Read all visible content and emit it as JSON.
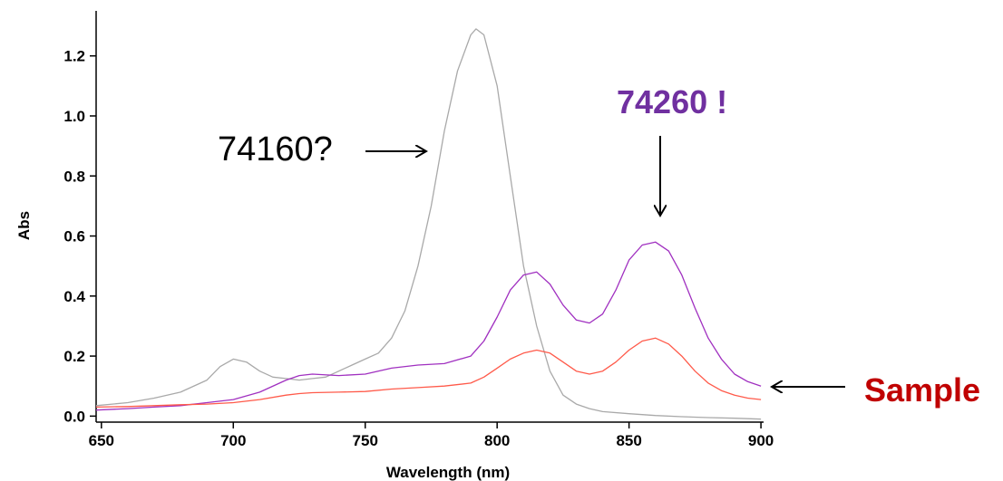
{
  "chart_data": {
    "type": "line",
    "xlabel": "Wavelength (nm)",
    "ylabel": "Abs",
    "xlim": [
      648,
      901
    ],
    "ylim": [
      -0.02,
      1.35
    ],
    "x_ticks": [
      650,
      700,
      750,
      800,
      850,
      900
    ],
    "y_ticks": [
      0.0,
      0.2,
      0.4,
      0.6,
      0.8,
      1.0,
      1.2
    ],
    "x_tick_labels": [
      "650",
      "700",
      "750",
      "800",
      "850",
      "900"
    ],
    "y_tick_labels": [
      "0.0",
      "0.2",
      "0.4",
      "0.6",
      "0.8",
      "1.0",
      "1.2"
    ],
    "grid": false,
    "series": [
      {
        "color": "#a9a9a9",
        "x": [
          648,
          660,
          670,
          680,
          690,
          695,
          700,
          705,
          710,
          715,
          720,
          725,
          730,
          735,
          740,
          745,
          750,
          755,
          760,
          765,
          770,
          775,
          780,
          785,
          790,
          792,
          795,
          800,
          805,
          810,
          815,
          820,
          825,
          830,
          835,
          840,
          850,
          860,
          870,
          880,
          890,
          900
        ],
        "y": [
          0.035,
          0.045,
          0.06,
          0.08,
          0.12,
          0.165,
          0.19,
          0.18,
          0.15,
          0.13,
          0.125,
          0.12,
          0.125,
          0.13,
          0.15,
          0.17,
          0.19,
          0.21,
          0.26,
          0.35,
          0.5,
          0.7,
          0.95,
          1.15,
          1.27,
          1.29,
          1.27,
          1.1,
          0.8,
          0.5,
          0.3,
          0.15,
          0.07,
          0.04,
          0.025,
          0.015,
          0.008,
          0.002,
          -0.002,
          -0.005,
          -0.007,
          -0.01
        ]
      },
      {
        "color": "#a030c0",
        "x": [
          648,
          660,
          670,
          680,
          690,
          700,
          710,
          720,
          725,
          730,
          740,
          750,
          760,
          770,
          780,
          790,
          795,
          800,
          805,
          810,
          815,
          820,
          825,
          830,
          835,
          840,
          845,
          850,
          855,
          860,
          865,
          870,
          875,
          880,
          885,
          890,
          895,
          900
        ],
        "y": [
          0.02,
          0.025,
          0.03,
          0.035,
          0.045,
          0.055,
          0.08,
          0.12,
          0.135,
          0.14,
          0.135,
          0.14,
          0.16,
          0.17,
          0.175,
          0.2,
          0.25,
          0.33,
          0.42,
          0.47,
          0.48,
          0.44,
          0.37,
          0.32,
          0.31,
          0.34,
          0.42,
          0.52,
          0.57,
          0.58,
          0.55,
          0.47,
          0.36,
          0.26,
          0.19,
          0.14,
          0.115,
          0.1
        ]
      },
      {
        "color": "#ff5a4a",
        "x": [
          648,
          660,
          670,
          680,
          690,
          700,
          710,
          720,
          725,
          730,
          740,
          750,
          760,
          770,
          780,
          790,
          795,
          800,
          805,
          810,
          815,
          820,
          825,
          830,
          835,
          840,
          845,
          850,
          855,
          860,
          865,
          870,
          875,
          880,
          885,
          890,
          895,
          900
        ],
        "y": [
          0.03,
          0.032,
          0.035,
          0.038,
          0.04,
          0.045,
          0.055,
          0.07,
          0.075,
          0.078,
          0.08,
          0.082,
          0.09,
          0.095,
          0.1,
          0.11,
          0.13,
          0.16,
          0.19,
          0.21,
          0.22,
          0.21,
          0.18,
          0.15,
          0.14,
          0.15,
          0.18,
          0.22,
          0.25,
          0.26,
          0.24,
          0.2,
          0.15,
          0.11,
          0.085,
          0.07,
          0.06,
          0.055
        ]
      }
    ]
  },
  "annotations": {
    "label_74160": "74160?",
    "label_74260": "74260 !",
    "label_sample": "Sample"
  }
}
